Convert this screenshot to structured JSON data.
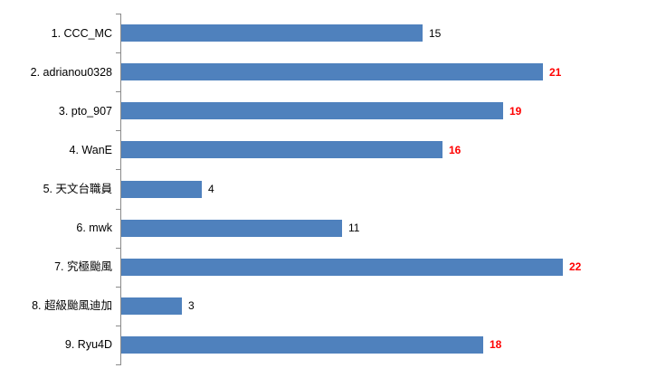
{
  "chart_data": {
    "type": "bar",
    "orientation": "horizontal",
    "title": "",
    "xlabel": "",
    "ylabel": "",
    "grid": false,
    "legend": false,
    "xlim": [
      0,
      26
    ],
    "categories": [
      "1. CCC_MC",
      "2. adrianou0328",
      "3. pto_907",
      "4. WanE",
      "5. 天文台職員",
      "6. mwk",
      "7. 究極颱風",
      "8. 超級颱風迪加",
      "9. Ryu4D"
    ],
    "values": [
      15,
      21,
      19,
      16,
      4,
      11,
      22,
      3,
      18
    ],
    "points": [
      {
        "label": "1. CCC_MC",
        "value": 15,
        "highlight": false
      },
      {
        "label": "2. adrianou0328",
        "value": 21,
        "highlight": true
      },
      {
        "label": "3. pto_907",
        "value": 19,
        "highlight": true
      },
      {
        "label": "4. WanE",
        "value": 16,
        "highlight": true
      },
      {
        "label": "5. 天文台職員",
        "value": 4,
        "highlight": false
      },
      {
        "label": "6. mwk",
        "value": 11,
        "highlight": false
      },
      {
        "label": "7. 究極颱風",
        "value": 22,
        "highlight": true
      },
      {
        "label": "8. 超級颱風迪加",
        "value": 3,
        "highlight": false
      },
      {
        "label": "9. Ryu4D",
        "value": 18,
        "highlight": true
      }
    ],
    "colors": {
      "bar": "#4F81BD",
      "axis": "#8a8a8a",
      "value_label_default": "#000000",
      "value_label_highlight": "#FF0000",
      "category_label": "#000000",
      "background": "#FFFFFF"
    }
  }
}
